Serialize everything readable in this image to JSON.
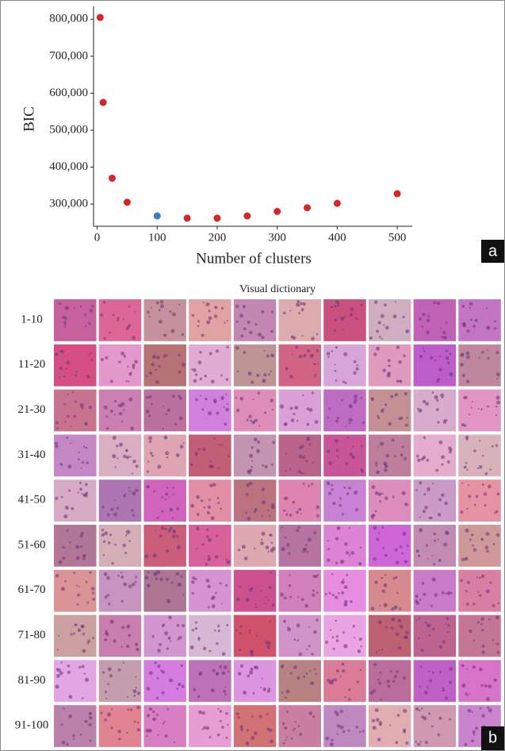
{
  "chart_data": {
    "type": "scatter",
    "ylabel": "BIC",
    "xlabel": "Number of clusters",
    "x": [
      5,
      10,
      25,
      50,
      100,
      150,
      200,
      250,
      300,
      350,
      400,
      500
    ],
    "values": [
      805000,
      575000,
      370000,
      305000,
      268000,
      262000,
      262000,
      268000,
      280000,
      290000,
      302000,
      328000
    ],
    "point_colors": [
      "#d62728",
      "#d62728",
      "#d62728",
      "#d62728",
      "#3a7fc1",
      "#d62728",
      "#d62728",
      "#d62728",
      "#d62728",
      "#d62728",
      "#d62728",
      "#d62728"
    ],
    "xlim": [
      -6,
      525
    ],
    "xticks": [
      0,
      100,
      200,
      300,
      400,
      500
    ],
    "ylim": [
      240000,
      835000
    ],
    "yticks": [
      {
        "value": 300000,
        "label": "300,000"
      },
      {
        "value": 400000,
        "label": "400,000"
      },
      {
        "value": 500000,
        "label": "500,000"
      },
      {
        "value": 600000,
        "label": "600,000"
      },
      {
        "value": 700000,
        "label": "700,000"
      },
      {
        "value": 800000,
        "label": "800,000"
      }
    ],
    "panel_label": "a"
  },
  "dictionary": {
    "title": "Visual dictionary",
    "rows": [
      "1-10",
      "11-20",
      "21-30",
      "31-40",
      "41-50",
      "51-60",
      "61-70",
      "71-80",
      "81-90",
      "91-100"
    ],
    "panel_label": "b"
  }
}
